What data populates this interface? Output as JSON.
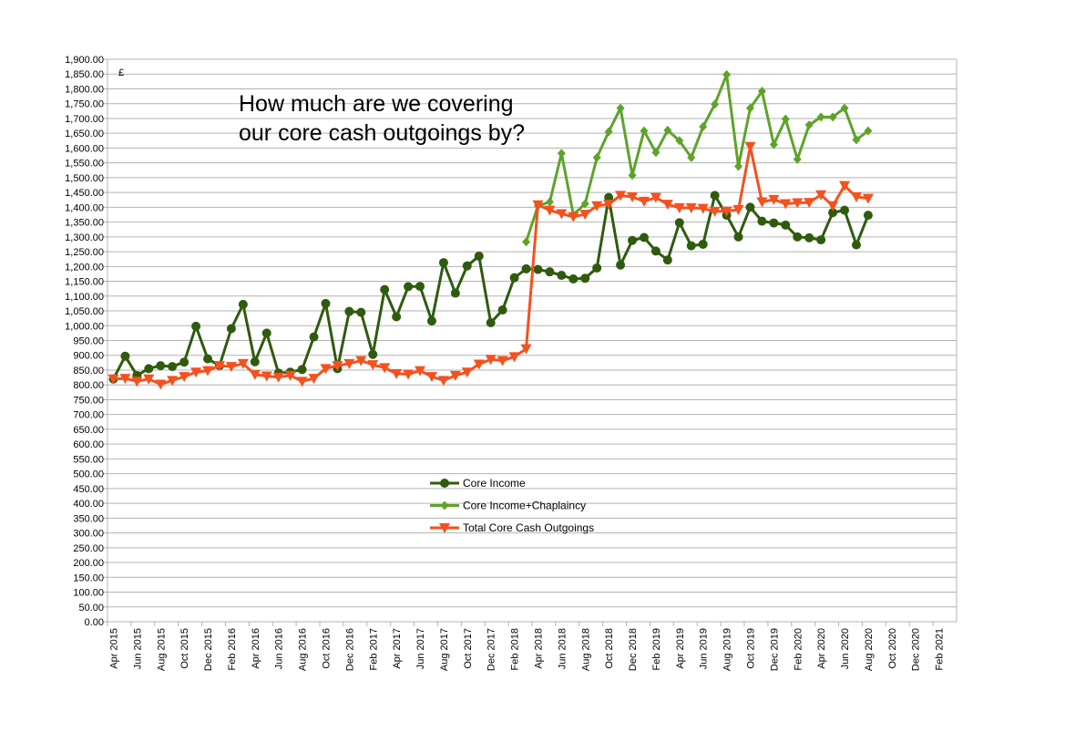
{
  "chart_data": {
    "type": "line",
    "annotation": "How much are we covering\nour core cash outgoings by?",
    "unit_label": "£",
    "ylim": [
      0,
      1900
    ],
    "y_step": 50,
    "grid": true,
    "legend_position": "center",
    "x_tick_labels": [
      "Apr 2015",
      "Jun 2015",
      "Aug 2015",
      "Oct 2015",
      "Dec 2015",
      "Feb 2016",
      "Apr 2016",
      "Jun 2016",
      "Aug 2016",
      "Oct 2016",
      "Dec 2016",
      "Feb 2017",
      "Apr 2017",
      "Jun 2017",
      "Aug 2017",
      "Oct 2017",
      "Dec 2017",
      "Feb 2018",
      "Apr 2018",
      "Jun 2018",
      "Aug 2018",
      "Oct 2018",
      "Dec 2018",
      "Feb 2019",
      "Apr 2019",
      "Jun 2019",
      "Aug 2019",
      "Oct 2019",
      "Dec 2019",
      "Feb 2020",
      "Apr 2020",
      "Jun 2020",
      "Aug 2020",
      "Oct 2020",
      "Dec 2020",
      "Feb 2021"
    ],
    "x_months_total": 72,
    "series": [
      {
        "name": "Core Income",
        "color": "#2f5b0e",
        "marker": "circle",
        "start_index": 0,
        "values": [
          820,
          897,
          832,
          855,
          865,
          862,
          877,
          998,
          888,
          865,
          990,
          1072,
          878,
          975,
          840,
          843,
          852,
          962,
          1075,
          855,
          1048,
          1045,
          903,
          1122,
          1030,
          1132,
          1133,
          1016,
          1213,
          1110,
          1202,
          1235,
          1010,
          1053,
          1162,
          1192,
          1190,
          1182,
          1170,
          1158,
          1160,
          1195,
          1433,
          1205,
          1288,
          1298,
          1252,
          1222,
          1348,
          1270,
          1275,
          1440,
          1373,
          1300,
          1400,
          1353,
          1347,
          1340,
          1300,
          1297,
          1290,
          1382,
          1390,
          1273,
          1373
        ]
      },
      {
        "name": "Core Income+Chaplaincy",
        "color": "#5ea32a",
        "marker": "diamond",
        "start_index": 35,
        "values": [
          1283,
          1405,
          1418,
          1582,
          1375,
          1412,
          1568,
          1655,
          1735,
          1508,
          1658,
          1585,
          1660,
          1625,
          1568,
          1672,
          1748,
          1848,
          1538,
          1735,
          1792,
          1612,
          1698,
          1562,
          1678,
          1705,
          1705,
          1735,
          1628,
          1658
        ]
      },
      {
        "name": "Total Core Cash Outgoings",
        "color": "#f4511e",
        "marker": "triangle-down",
        "start_index": 0,
        "values": [
          820,
          822,
          812,
          820,
          802,
          815,
          828,
          843,
          848,
          865,
          862,
          872,
          835,
          830,
          826,
          832,
          812,
          822,
          855,
          865,
          872,
          882,
          868,
          858,
          838,
          836,
          848,
          828,
          815,
          832,
          843,
          870,
          886,
          882,
          895,
          922,
          1408,
          1390,
          1378,
          1368,
          1376,
          1405,
          1410,
          1440,
          1435,
          1420,
          1433,
          1410,
          1398,
          1398,
          1396,
          1386,
          1387,
          1392,
          1605,
          1418,
          1426,
          1412,
          1415,
          1416,
          1442,
          1405,
          1473,
          1435,
          1430
        ]
      }
    ]
  }
}
